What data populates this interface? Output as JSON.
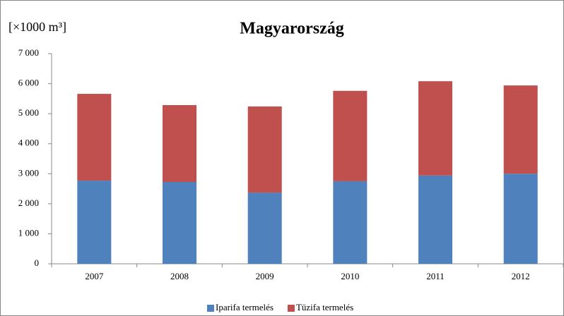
{
  "chart_data": {
    "type": "stacked_bar",
    "title": "Magyarország",
    "y_axis_label": "[×1000 m³]",
    "categories": [
      "2007",
      "2008",
      "2009",
      "2010",
      "2011",
      "2012"
    ],
    "series": [
      {
        "name": "Iparifa termelés",
        "color": "#4f81bd",
        "values": [
          2770,
          2725,
          2370,
          2750,
          2940,
          3000
        ]
      },
      {
        "name": "Tüzifa termelés",
        "color": "#c0504d",
        "values": [
          2890,
          2560,
          2870,
          3010,
          3140,
          2940
        ]
      }
    ],
    "ylim": [
      0,
      7000
    ],
    "yticks": [
      {
        "value": 0,
        "label": "0"
      },
      {
        "value": 1000,
        "label": "1 000"
      },
      {
        "value": 2000,
        "label": "2 000"
      },
      {
        "value": 3000,
        "label": "3 000"
      },
      {
        "value": 4000,
        "label": "4 000"
      },
      {
        "value": 5000,
        "label": "5 000"
      },
      {
        "value": 6000,
        "label": "6 000"
      },
      {
        "value": 7000,
        "label": "7 000"
      }
    ],
    "legend": "bottom"
  }
}
